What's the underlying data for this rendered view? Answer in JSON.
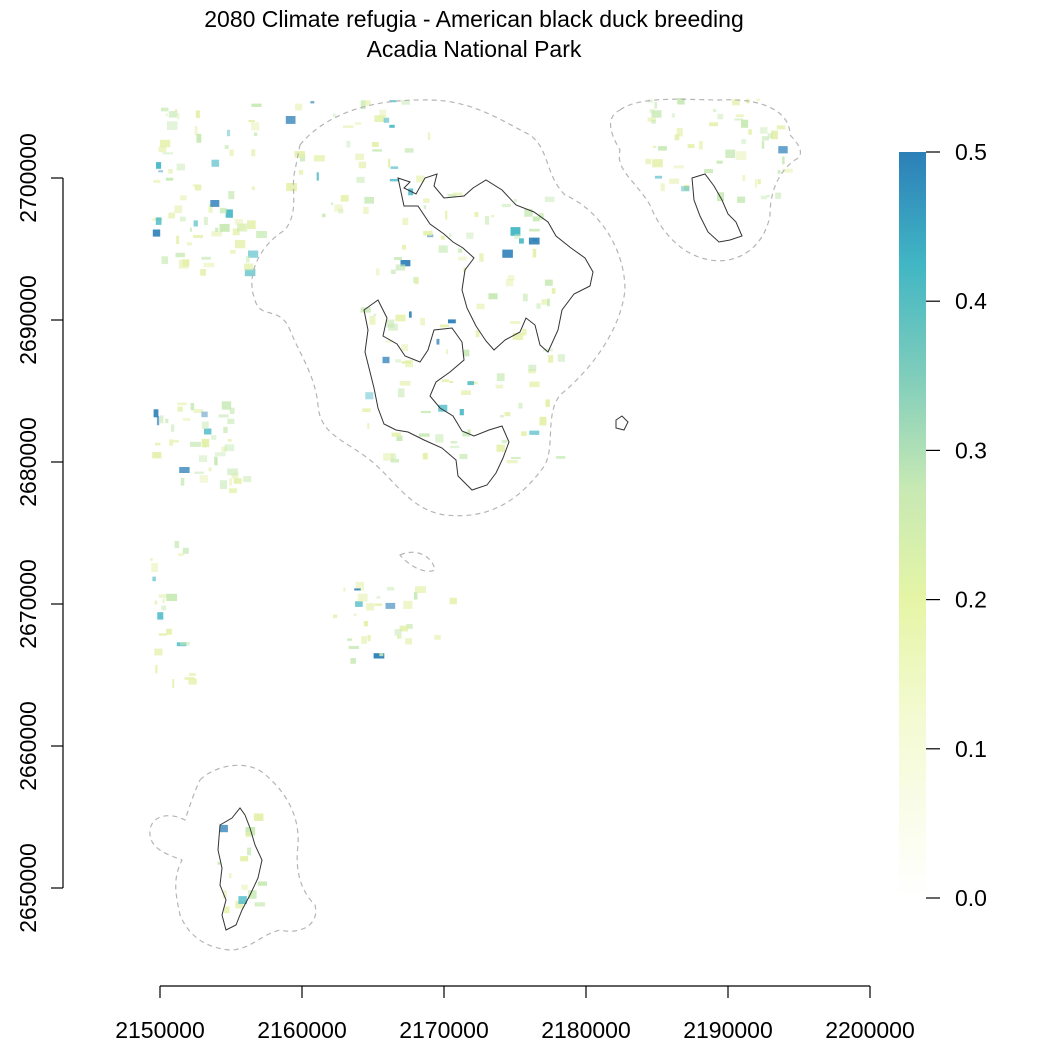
{
  "map": {
    "title_line1": "2080 Climate refugia - American black duck breeding",
    "title_line2": "Acadia National Park"
  },
  "chart_data": {
    "type": "heatmap",
    "x_ticks": [
      "2150000",
      "2160000",
      "2170000",
      "2180000",
      "2190000",
      "2200000"
    ],
    "y_ticks": [
      "2650000",
      "2660000",
      "2670000",
      "2680000",
      "2690000",
      "2700000"
    ],
    "xlim": [
      2150000,
      2200000
    ],
    "ylim": [
      2650000,
      2700000
    ],
    "legend": {
      "placement": "right",
      "ticks": [
        "0.0",
        "0.1",
        "0.2",
        "0.3",
        "0.4",
        "0.5"
      ],
      "range": [
        0,
        0.5
      ],
      "colors": [
        "#ffffff",
        "#edf8b1",
        "#c7e9b4",
        "#7fcdbb",
        "#41b6c4",
        "#2c7fb8"
      ]
    },
    "colors": {
      "light": "#e3f0a8",
      "mid": "#c7e9b4",
      "teal": "#41b6c4",
      "blue": "#2c7fb8",
      "buffer": "#b5b5b5",
      "boundary": "#333333"
    }
  }
}
